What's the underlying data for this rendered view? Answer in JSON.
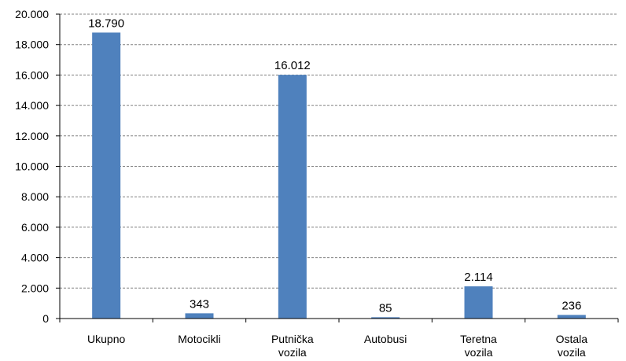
{
  "chart_data": {
    "type": "bar",
    "categories": [
      [
        "Ukupno"
      ],
      [
        "Motocikli"
      ],
      [
        "Putnička",
        "vozila"
      ],
      [
        "Autobusi"
      ],
      [
        "Teretna",
        "vozila"
      ],
      [
        "Ostala",
        "vozila"
      ]
    ],
    "values": [
      18790,
      343,
      16012,
      85,
      2114,
      236
    ],
    "value_labels": [
      "18.790",
      "343",
      "16.012",
      "85",
      "2.114",
      "236"
    ],
    "ylim": [
      0,
      20000
    ],
    "yticks": [
      0,
      2000,
      4000,
      6000,
      8000,
      10000,
      12000,
      14000,
      16000,
      18000,
      20000
    ],
    "ytick_labels": [
      "0",
      "2.000",
      "4.000",
      "6.000",
      "8.000",
      "10.000",
      "12.000",
      "14.000",
      "16.000",
      "18.000",
      "20.000"
    ],
    "bar_color": "#4F81BD",
    "grid": true,
    "legend": "none",
    "title": "",
    "xlabel": "",
    "ylabel": ""
  }
}
